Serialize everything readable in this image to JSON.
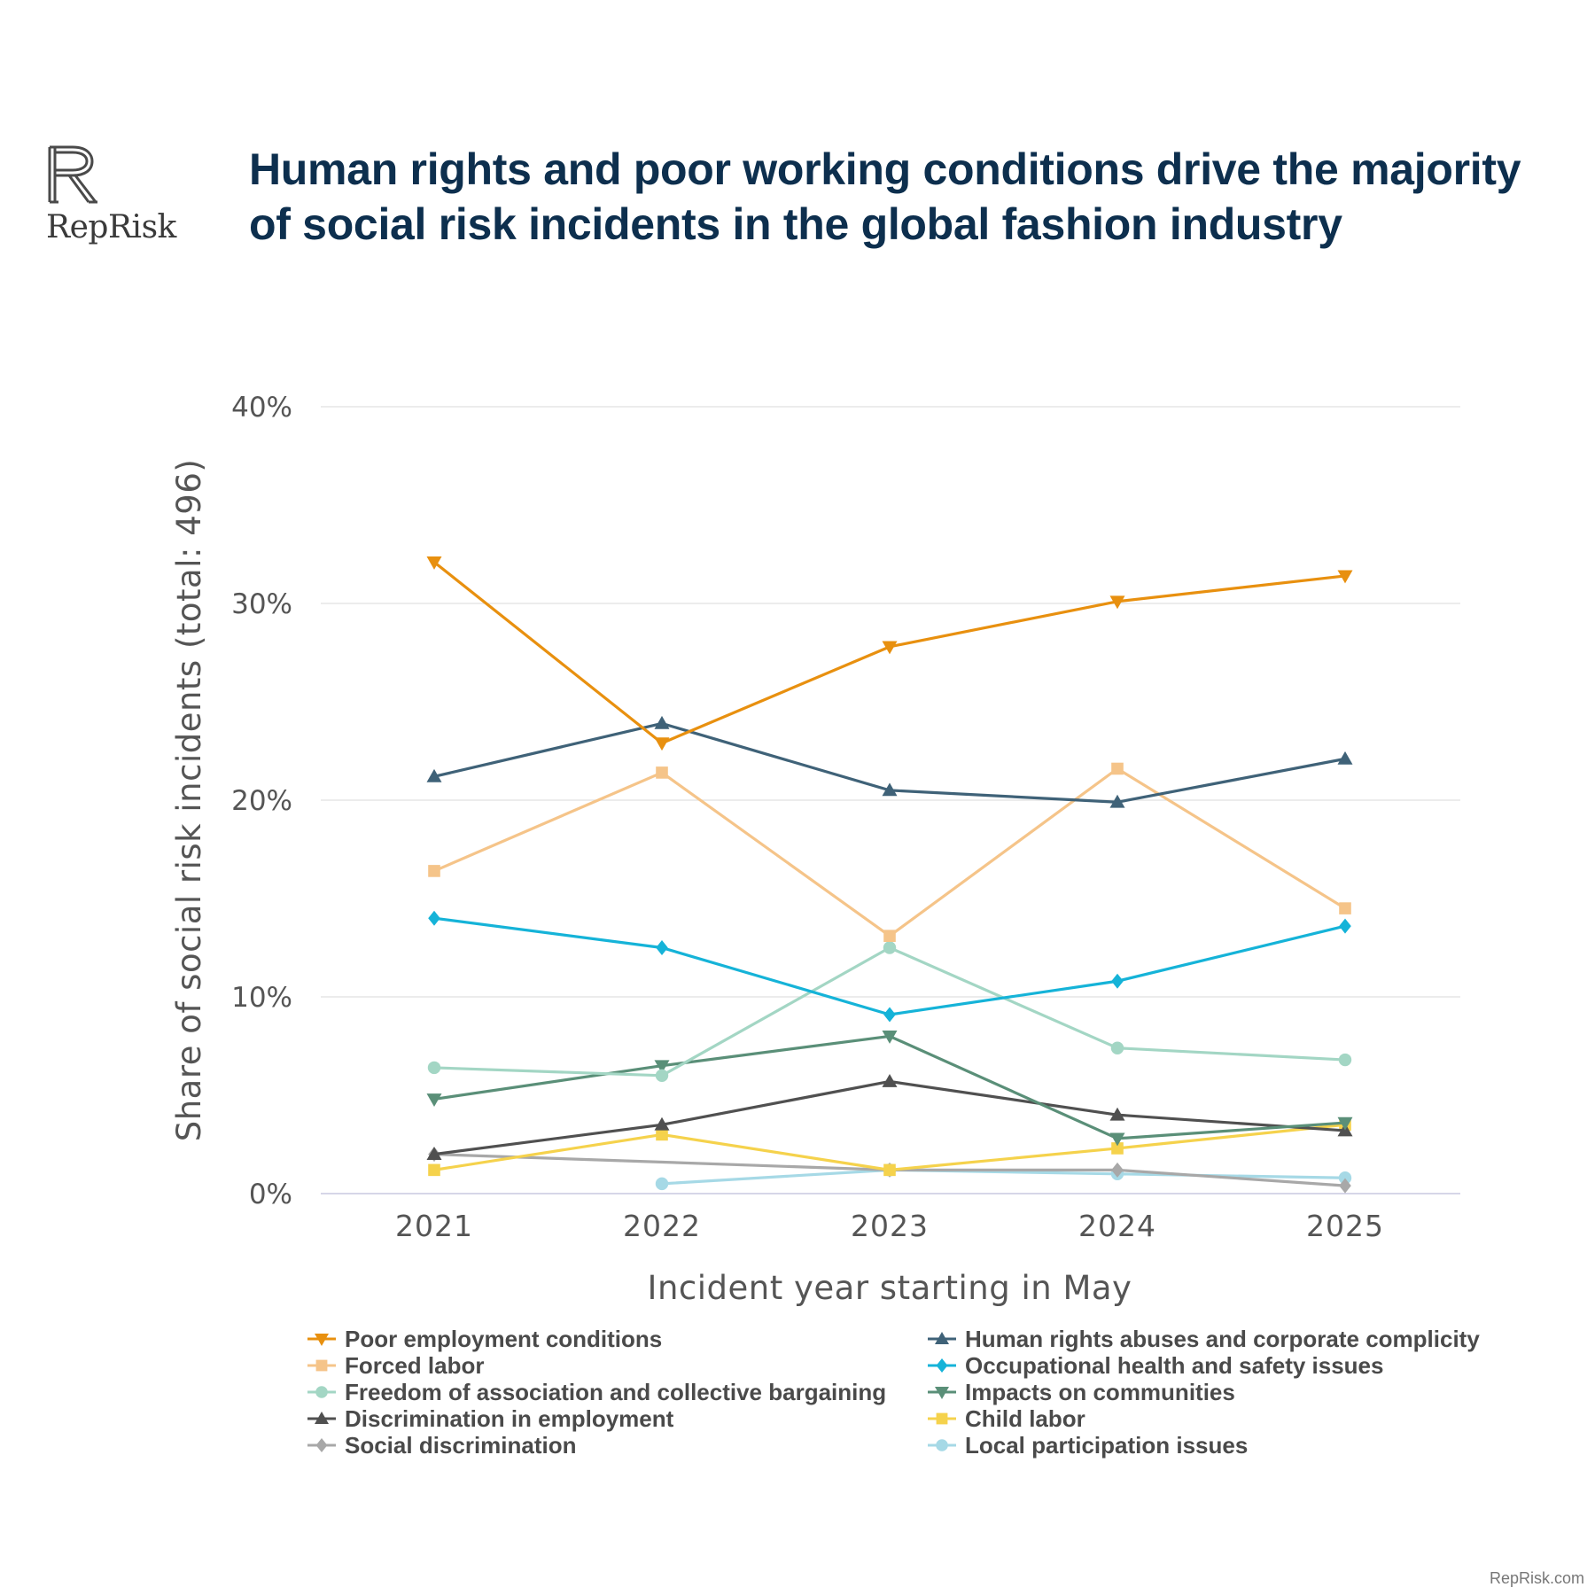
{
  "brand": {
    "name": "RepRisk",
    "icon": "reprisk-logo-icon"
  },
  "title": "Human rights and poor working conditions drive the majority of social risk incidents in the global fashion industry",
  "footer": "RepRisk.com",
  "chart_data": {
    "type": "line",
    "title": "Human rights and poor working conditions drive the majority of social risk incidents in the global fashion industry",
    "xlabel": "Incident year starting in May",
    "ylabel": "Share of social risk incidents (total: 496)",
    "x": [
      "2021",
      "2022",
      "2023",
      "2024",
      "2025"
    ],
    "ylim": [
      0,
      40
    ],
    "yticks": [
      "0%",
      "10%",
      "20%",
      "30%",
      "40%"
    ],
    "ytick_values": [
      0,
      10,
      20,
      30,
      40
    ],
    "grid": true,
    "legend_position": "bottom",
    "series": [
      {
        "name": "Poor employment conditions",
        "color": "#e8900f",
        "marker": "triangle-down",
        "values": [
          32.1,
          22.9,
          27.8,
          30.1,
          31.4
        ]
      },
      {
        "name": "Human rights abuses and corporate complicity",
        "color": "#3f6278",
        "marker": "triangle-up",
        "values": [
          21.2,
          23.9,
          20.5,
          19.9,
          22.1
        ]
      },
      {
        "name": "Forced labor",
        "color": "#f5c489",
        "marker": "square",
        "values": [
          16.4,
          21.4,
          13.1,
          21.6,
          14.5
        ]
      },
      {
        "name": "Occupational health and safety issues",
        "color": "#15b3d8",
        "marker": "diamond",
        "values": [
          14.0,
          12.5,
          9.1,
          10.8,
          13.6
        ]
      },
      {
        "name": "Freedom of association and collective bargaining",
        "color": "#a3d6c4",
        "marker": "circle",
        "values": [
          6.4,
          6.0,
          12.5,
          7.4,
          6.8
        ]
      },
      {
        "name": "Impacts on communities",
        "color": "#5a8f78",
        "marker": "triangle-down",
        "values": [
          4.8,
          6.5,
          8.0,
          2.8,
          3.6
        ]
      },
      {
        "name": "Discrimination in employment",
        "color": "#505050",
        "marker": "triangle-up",
        "values": [
          2.0,
          3.5,
          5.7,
          4.0,
          3.2
        ]
      },
      {
        "name": "Child labor",
        "color": "#f5d24c",
        "marker": "square",
        "values": [
          1.2,
          3.0,
          1.2,
          2.3,
          3.5
        ]
      },
      {
        "name": "Social discrimination",
        "color": "#a8a8a8",
        "marker": "diamond",
        "values": [
          2.0,
          null,
          1.2,
          1.2,
          0.4
        ]
      },
      {
        "name": "Local participation issues",
        "color": "#a6d9e6",
        "marker": "circle",
        "values": [
          null,
          0.5,
          1.2,
          1.0,
          0.8
        ]
      }
    ]
  },
  "legend_order": [
    0,
    1,
    2,
    3,
    4,
    5,
    6,
    7,
    8,
    9
  ]
}
